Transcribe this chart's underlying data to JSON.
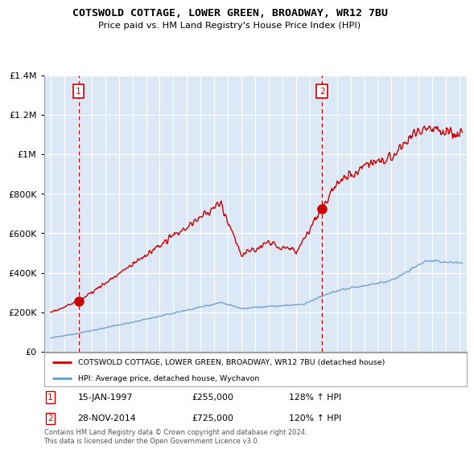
{
  "title": "COTSWOLD COTTAGE, LOWER GREEN, BROADWAY, WR12 7BU",
  "subtitle": "Price paid vs. HM Land Registry's House Price Index (HPI)",
  "legend_line1": "COTSWOLD COTTAGE, LOWER GREEN, BROADWAY, WR12 7BU (detached house)",
  "legend_line2": "HPI: Average price, detached house, Wychavon",
  "footnote": "Contains HM Land Registry data © Crown copyright and database right 2024.\nThis data is licensed under the Open Government Licence v3.0.",
  "sale1_label": "1",
  "sale1_date": "15-JAN-1997",
  "sale1_price": "£255,000",
  "sale1_hpi": "128% ↑ HPI",
  "sale2_label": "2",
  "sale2_date": "28-NOV-2014",
  "sale2_price": "£725,000",
  "sale2_hpi": "120% ↑ HPI",
  "sale1_year": 1997.04,
  "sale1_value": 255000,
  "sale2_year": 2014.91,
  "sale2_value": 725000,
  "ylim": [
    0,
    1400000
  ],
  "xlim_start": 1994.5,
  "xlim_end": 2025.5,
  "red_color": "#cc0000",
  "blue_color": "#6699cc",
  "background_color": "#dce8f5",
  "plot_bg_color": "#dce8f5",
  "grid_color": "#ffffff"
}
